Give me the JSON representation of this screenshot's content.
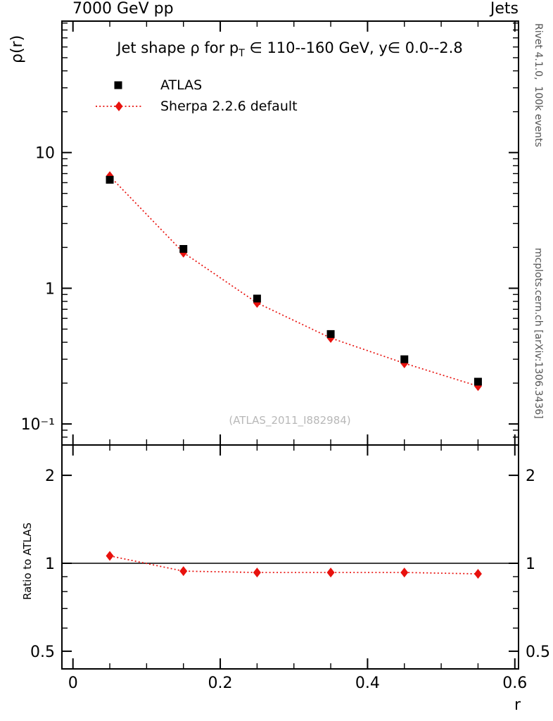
{
  "header": {
    "left": "7000 GeV pp",
    "right": "Jets"
  },
  "title": {
    "pre": "Jet shape ρ for p",
    "sub": "T",
    "post": " ∈ 110--160 GeV, y∈ 0.0--2.8"
  },
  "axis_labels": {
    "y_main": "ρ(r)",
    "y_ratio": "Ratio to ATLAS",
    "x": "r"
  },
  "watermark": "(ATLAS_2011_I882984)",
  "side_notes": {
    "top_right": "Rivet 4.1.0,  100k events",
    "bottom_right": "mcplots.cern.ch [arXiv:1306.3436]"
  },
  "chart_data": {
    "type": "scatter",
    "title": "Jet shape ρ for pT ∈ 110--160 GeV, y ∈ 0.0--2.8",
    "x_values": [
      0.05,
      0.15,
      0.25,
      0.35,
      0.45,
      0.55
    ],
    "series": [
      {
        "name": "ATLAS",
        "marker": "square",
        "color": "#000000",
        "values": [
          6.3,
          1.95,
          0.84,
          0.46,
          0.3,
          0.205
        ]
      },
      {
        "name": "Sherpa 2.2.6 default",
        "marker": "diamond",
        "color": "#e8110d",
        "line_style": "dotted",
        "values": [
          6.7,
          1.83,
          0.78,
          0.43,
          0.28,
          0.19
        ]
      }
    ],
    "x_axis": {
      "label": "r",
      "xlim": [
        -0.015,
        0.605
      ],
      "tick_values": [
        0,
        0.2,
        0.4,
        0.6
      ],
      "tick_labels": [
        "0",
        "0.2",
        "0.4",
        "0.6"
      ],
      "minor_step": 0.05
    },
    "main_panel": {
      "ylabel": "ρ(r)",
      "yscale": "log",
      "ylim": [
        0.07,
        93
      ],
      "tick_values": [
        10,
        1,
        0.1
      ],
      "tick_labels": [
        "10",
        "1",
        "10⁻¹"
      ]
    },
    "ratio_panel": {
      "ylabel": "Ratio to ATLAS",
      "yscale": "log",
      "ylim": [
        0.435,
        2.54
      ],
      "reference": "ATLAS",
      "tick_values": [
        2,
        1,
        0.5
      ],
      "tick_labels": [
        "2",
        "1",
        "0.5"
      ],
      "series": [
        {
          "name": "Sherpa 2.2.6 default",
          "values": [
            1.06,
            0.94,
            0.93,
            0.93,
            0.93,
            0.92
          ]
        }
      ]
    }
  }
}
